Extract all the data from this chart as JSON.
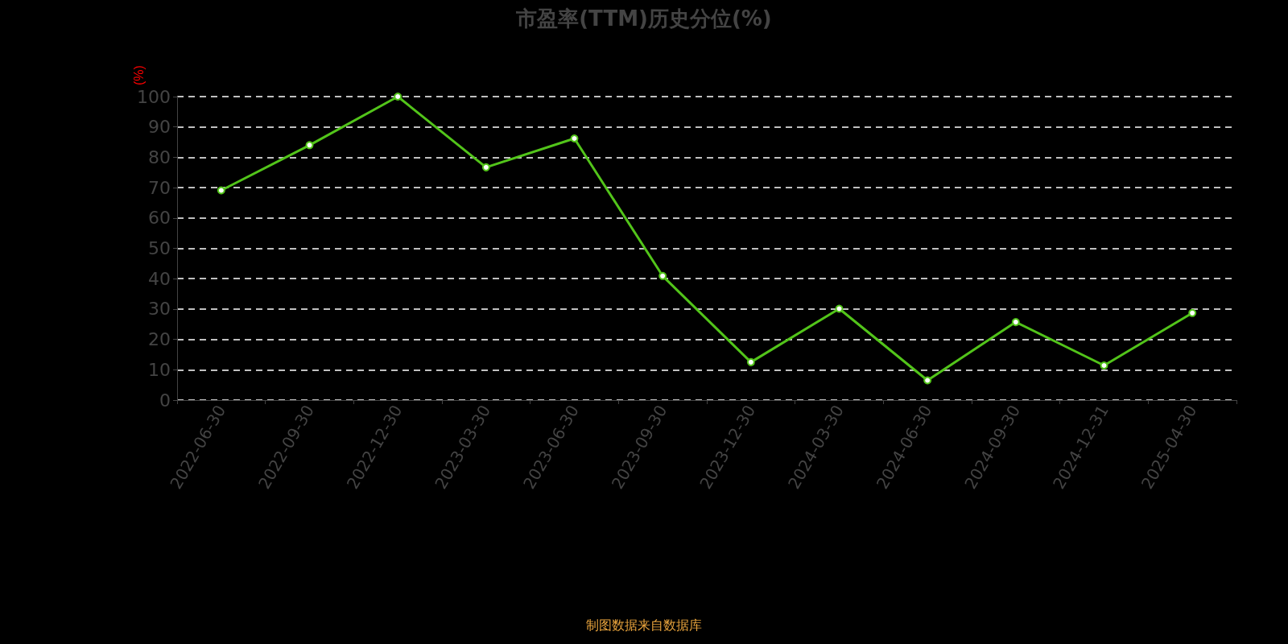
{
  "chart_data": {
    "type": "line",
    "title": "市盈率(TTM)历史分位(%)",
    "ylabel": "(%)",
    "categories": [
      "2022-06-30",
      "2022-09-30",
      "2022-12-30",
      "2023-03-30",
      "2023-06-30",
      "2023-09-30",
      "2023-12-30",
      "2024-03-30",
      "2024-06-30",
      "2024-09-30",
      "2024-12-31",
      "2025-04-30"
    ],
    "series": [
      {
        "color": "#52c41a",
        "values": [
          69.1,
          84.0,
          100,
          76.7,
          86.2,
          40.9,
          12.5,
          30.1,
          6.5,
          25.7,
          11.4,
          28.7
        ]
      }
    ],
    "ylim": [
      0,
      100
    ],
    "yticks": [
      0,
      10,
      20,
      30,
      40,
      50,
      60,
      70,
      80,
      90,
      100
    ],
    "grid": "y",
    "marker": "circle",
    "line_style": "solid",
    "annotations": [
      "制图数据来自数据库"
    ]
  }
}
